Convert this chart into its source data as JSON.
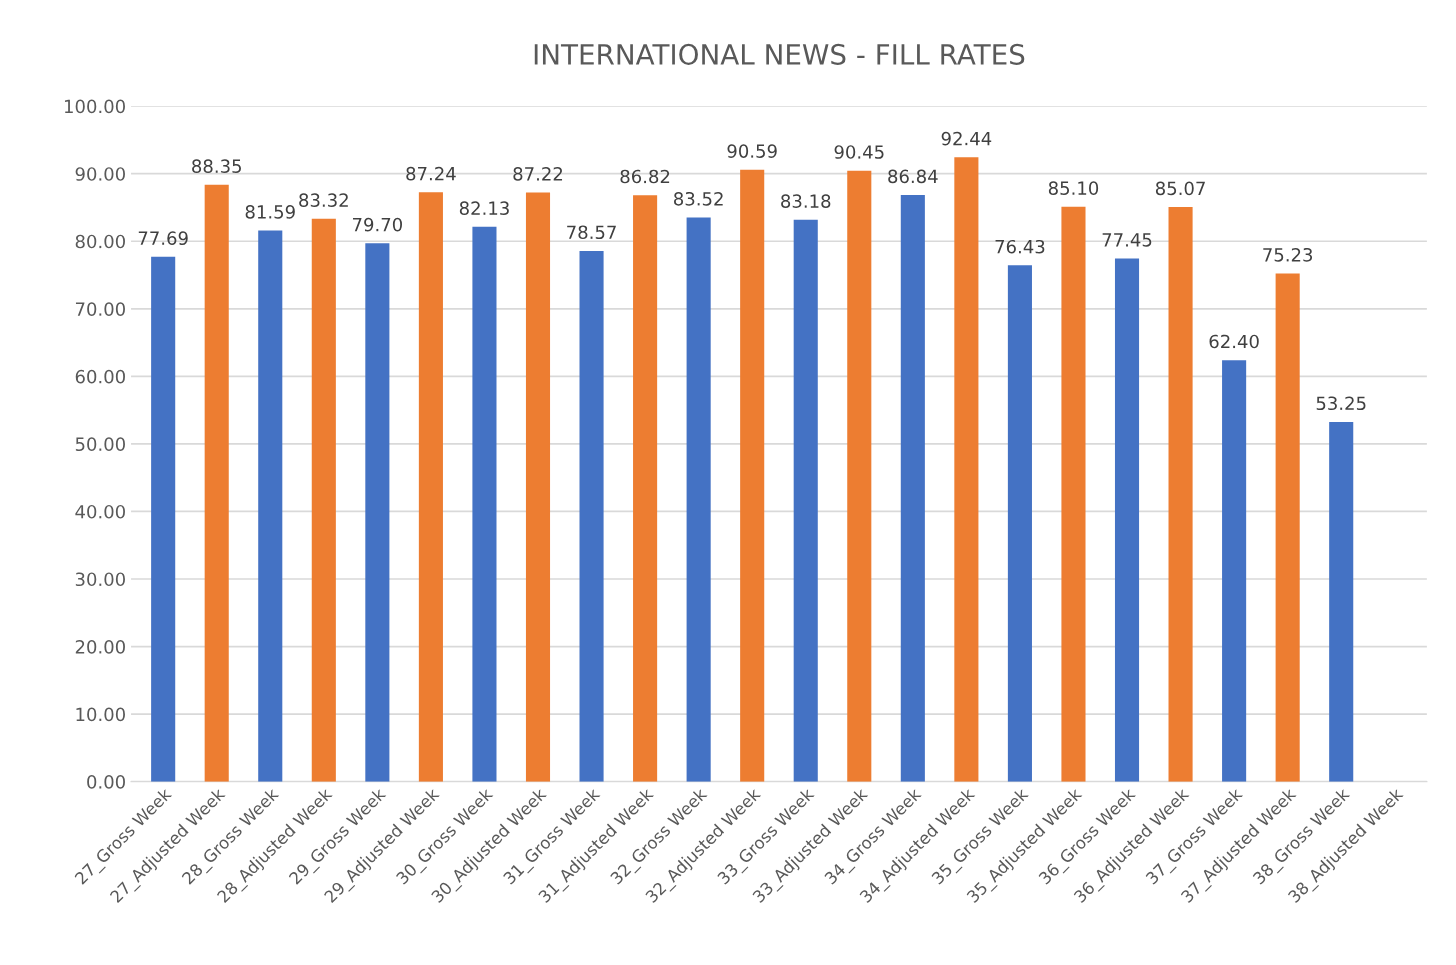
{
  "chart_data": {
    "type": "bar",
    "title": "INTERNATIONAL NEWS - FILL RATES",
    "categories": [
      "27_Gross Week",
      "27_Adjusted Week",
      "28_Gross Week",
      "28_Adjusted Week",
      "29_Gross Week",
      "29_Adjusted Week",
      "30_Gross Week",
      "30_Adjusted Week",
      "31_Gross Week",
      "31_Adjusted Week",
      "32_Gross Week",
      "32_Adjusted Week",
      "33_Gross Week",
      "33_Adjusted Week",
      "34_Gross Week",
      "34_Adjusted Week",
      "35_Gross Week",
      "35_Adjusted Week",
      "36_Gross Week",
      "36_Adjusted Week",
      "37_Gross Week",
      "37_Adjusted Week",
      "38_Gross Week",
      "38_Adjusted Week"
    ],
    "values": [
      77.69,
      88.35,
      81.59,
      83.32,
      79.7,
      87.24,
      82.13,
      87.22,
      78.57,
      86.82,
      83.52,
      90.59,
      83.18,
      90.45,
      86.84,
      92.44,
      76.43,
      85.1,
      77.45,
      85.07,
      62.4,
      75.23,
      53.25,
      null
    ],
    "value_labels": [
      "77.69",
      "88.35",
      "81.59",
      "83.32",
      "79.70",
      "87.24",
      "82.13",
      "87.22",
      "78.57",
      "86.82",
      "83.52",
      "90.59",
      "83.18",
      "90.45",
      "86.84",
      "92.44",
      "76.43",
      "85.10",
      "77.45",
      "85.07",
      "62.40",
      "75.23",
      "53.25",
      null
    ],
    "colors": [
      "#4472c4",
      "#ed7d31",
      "#4472c4",
      "#ed7d31",
      "#4472c4",
      "#ed7d31",
      "#4472c4",
      "#ed7d31",
      "#4472c4",
      "#ed7d31",
      "#4472c4",
      "#ed7d31",
      "#4472c4",
      "#ed7d31",
      "#4472c4",
      "#ed7d31",
      "#4472c4",
      "#ed7d31",
      "#4472c4",
      "#ed7d31",
      "#4472c4",
      "#ed7d31",
      "#4472c4",
      "#ed7d31"
    ],
    "ylim": [
      0,
      100
    ],
    "yticks": [
      {
        "value": 0,
        "label": "0.00"
      },
      {
        "value": 10,
        "label": "10.00"
      },
      {
        "value": 20,
        "label": "20.00"
      },
      {
        "value": 30,
        "label": "30.00"
      },
      {
        "value": 40,
        "label": "40.00"
      },
      {
        "value": 50,
        "label": "50.00"
      },
      {
        "value": 60,
        "label": "60.00"
      },
      {
        "value": 70,
        "label": "70.00"
      },
      {
        "value": 80,
        "label": "80.00"
      },
      {
        "value": 90,
        "label": "90.00"
      },
      {
        "value": 100,
        "label": "100.00"
      }
    ],
    "grid": "y",
    "legend": false
  }
}
